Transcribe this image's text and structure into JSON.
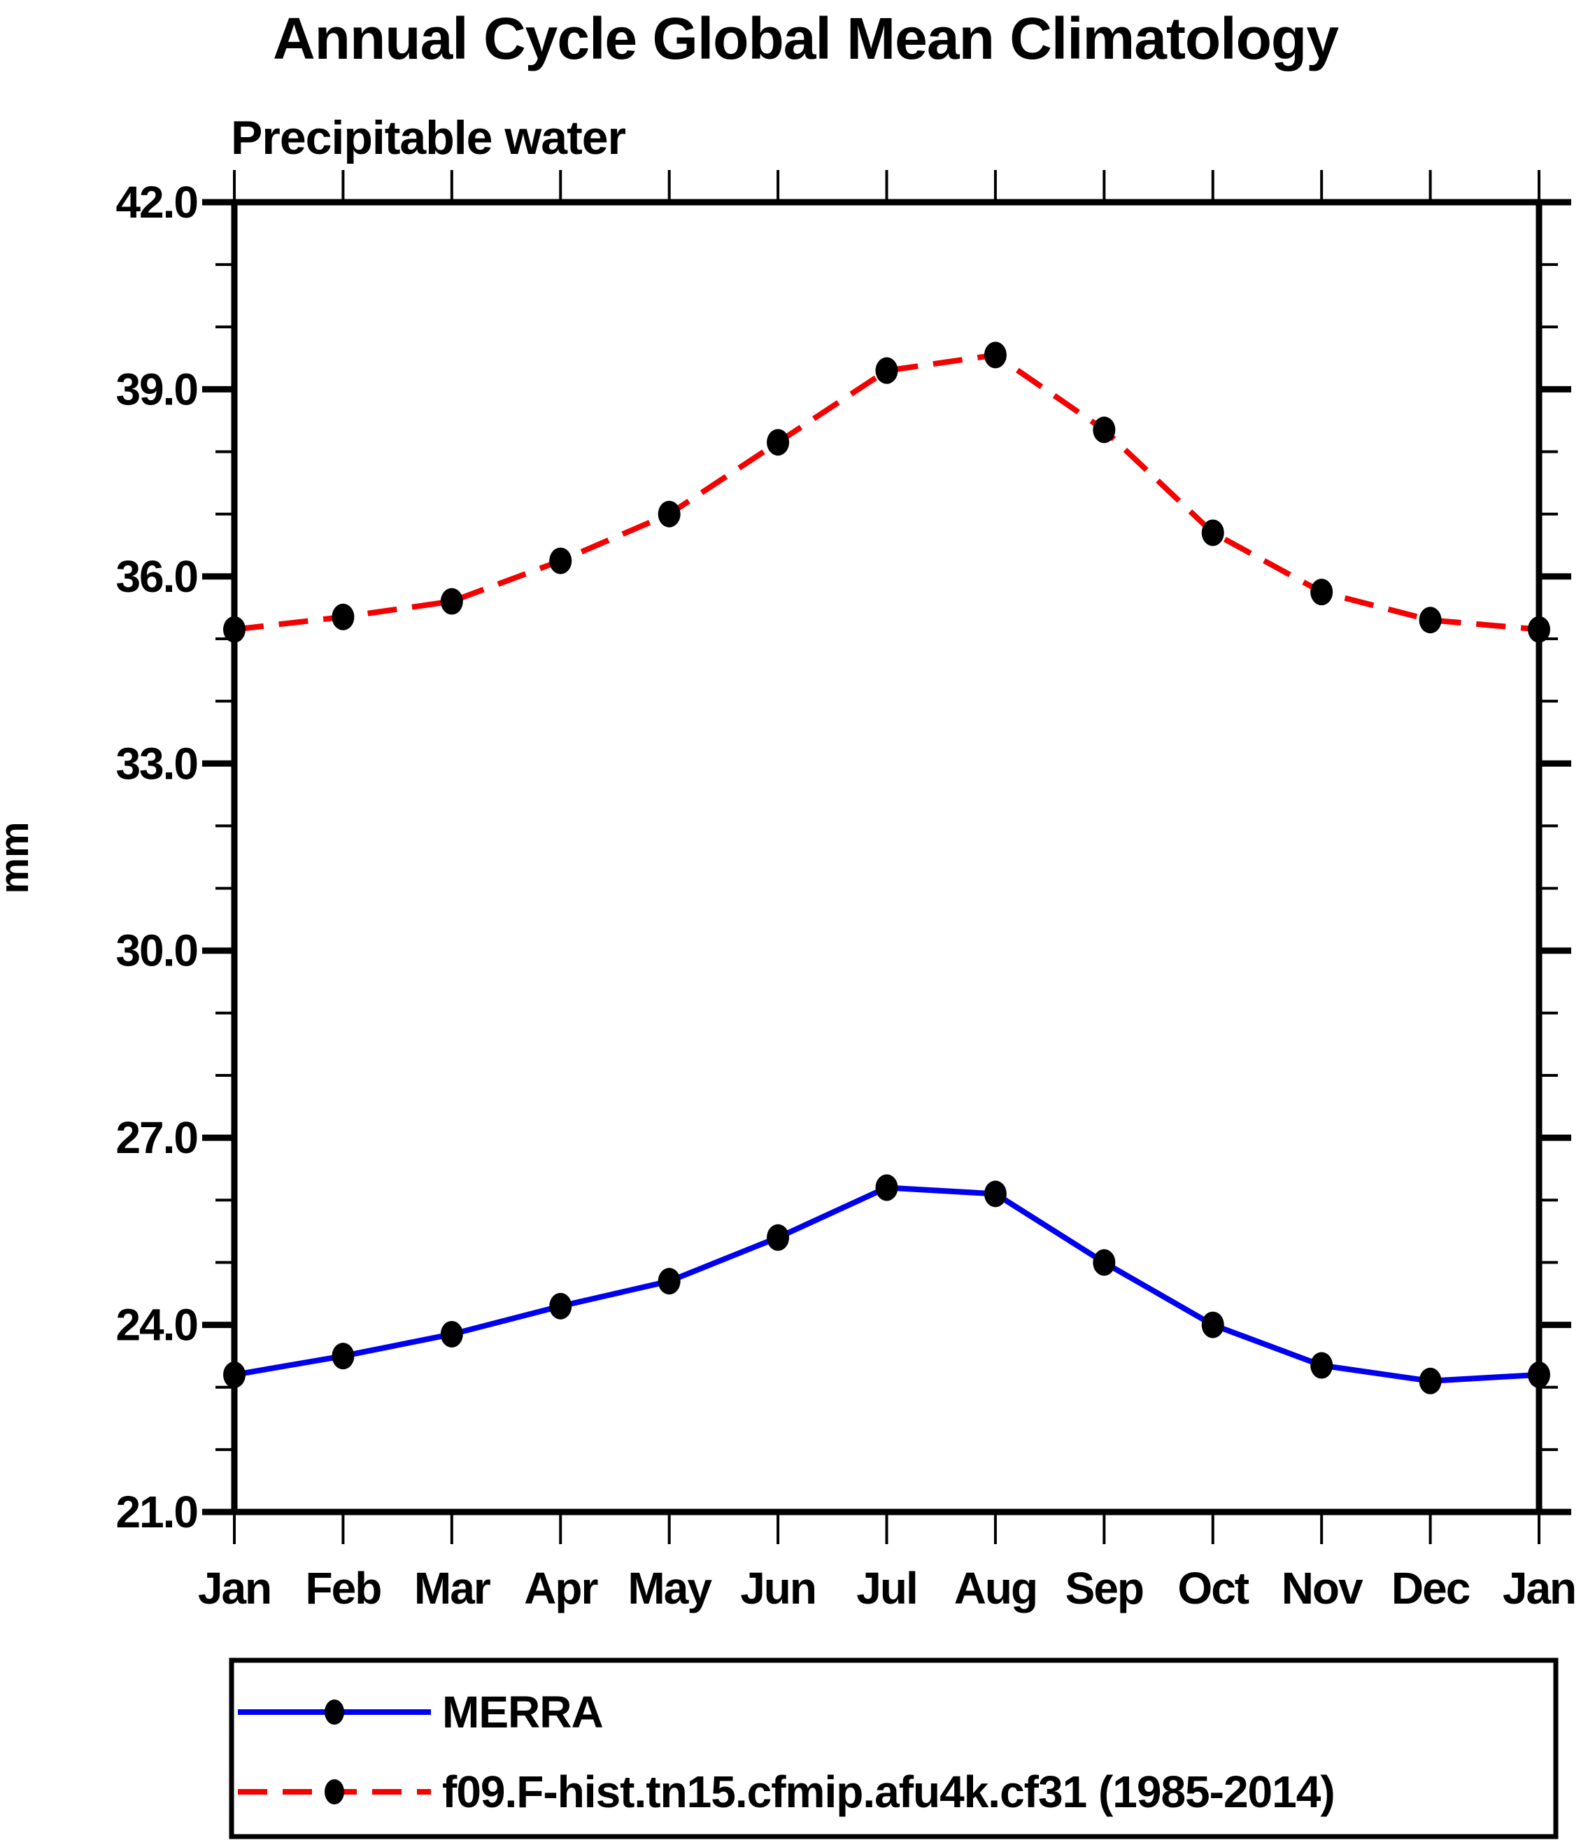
{
  "title": "Annual Cycle Global Mean Climatology",
  "subtitle": "Precipitable water",
  "y_axis": {
    "label": "mm",
    "tick_labels": [
      "42.0",
      "39.0",
      "36.0",
      "33.0",
      "30.0",
      "27.0",
      "24.0",
      "21.0"
    ]
  },
  "x_axis": {
    "tick_labels": [
      "Jan",
      "Feb",
      "Mar",
      "Apr",
      "May",
      "Jun",
      "Jul",
      "Aug",
      "Sep",
      "Oct",
      "Nov",
      "Dec",
      "Jan"
    ]
  },
  "legend": {
    "entries": [
      {
        "label": "MERRA",
        "color": "#0000f0",
        "style": "solid"
      },
      {
        "label": "f09.F-hist.tn15.cfmip.afu4k.cf31 (1985-2014)",
        "color": "#f40000",
        "style": "dashed"
      }
    ]
  },
  "chart_data": {
    "type": "line",
    "title": "Annual Cycle Global Mean Climatology",
    "subtitle": "Precipitable water",
    "xlabel": "",
    "ylabel": "mm",
    "ylim": [
      21.0,
      42.0
    ],
    "y_major_ticks": [
      21.0,
      24.0,
      27.0,
      30.0,
      33.0,
      36.0,
      39.0,
      42.0
    ],
    "y_minor_tick_interval": 1.0,
    "grid": false,
    "legend_position": "bottom",
    "categories": [
      "Jan",
      "Feb",
      "Mar",
      "Apr",
      "May",
      "Jun",
      "Jul",
      "Aug",
      "Sep",
      "Oct",
      "Nov",
      "Dec",
      "Jan"
    ],
    "series": [
      {
        "name": "MERRA",
        "color": "#0000f0",
        "line_style": "solid",
        "marker": "filled-circle",
        "marker_color": "#000000",
        "values": [
          23.2,
          23.5,
          23.85,
          24.3,
          24.7,
          25.4,
          26.2,
          26.1,
          25.0,
          24.0,
          23.35,
          23.1,
          23.2
        ]
      },
      {
        "name": "f09.F-hist.tn15.cfmip.afu4k.cf31 (1985-2014)",
        "color": "#f40000",
        "line_style": "dashed",
        "marker": "filled-circle",
        "marker_color": "#000000",
        "values": [
          35.15,
          35.35,
          35.6,
          36.25,
          37.0,
          38.15,
          39.3,
          39.55,
          38.35,
          36.7,
          35.75,
          35.3,
          35.15
        ]
      }
    ]
  }
}
